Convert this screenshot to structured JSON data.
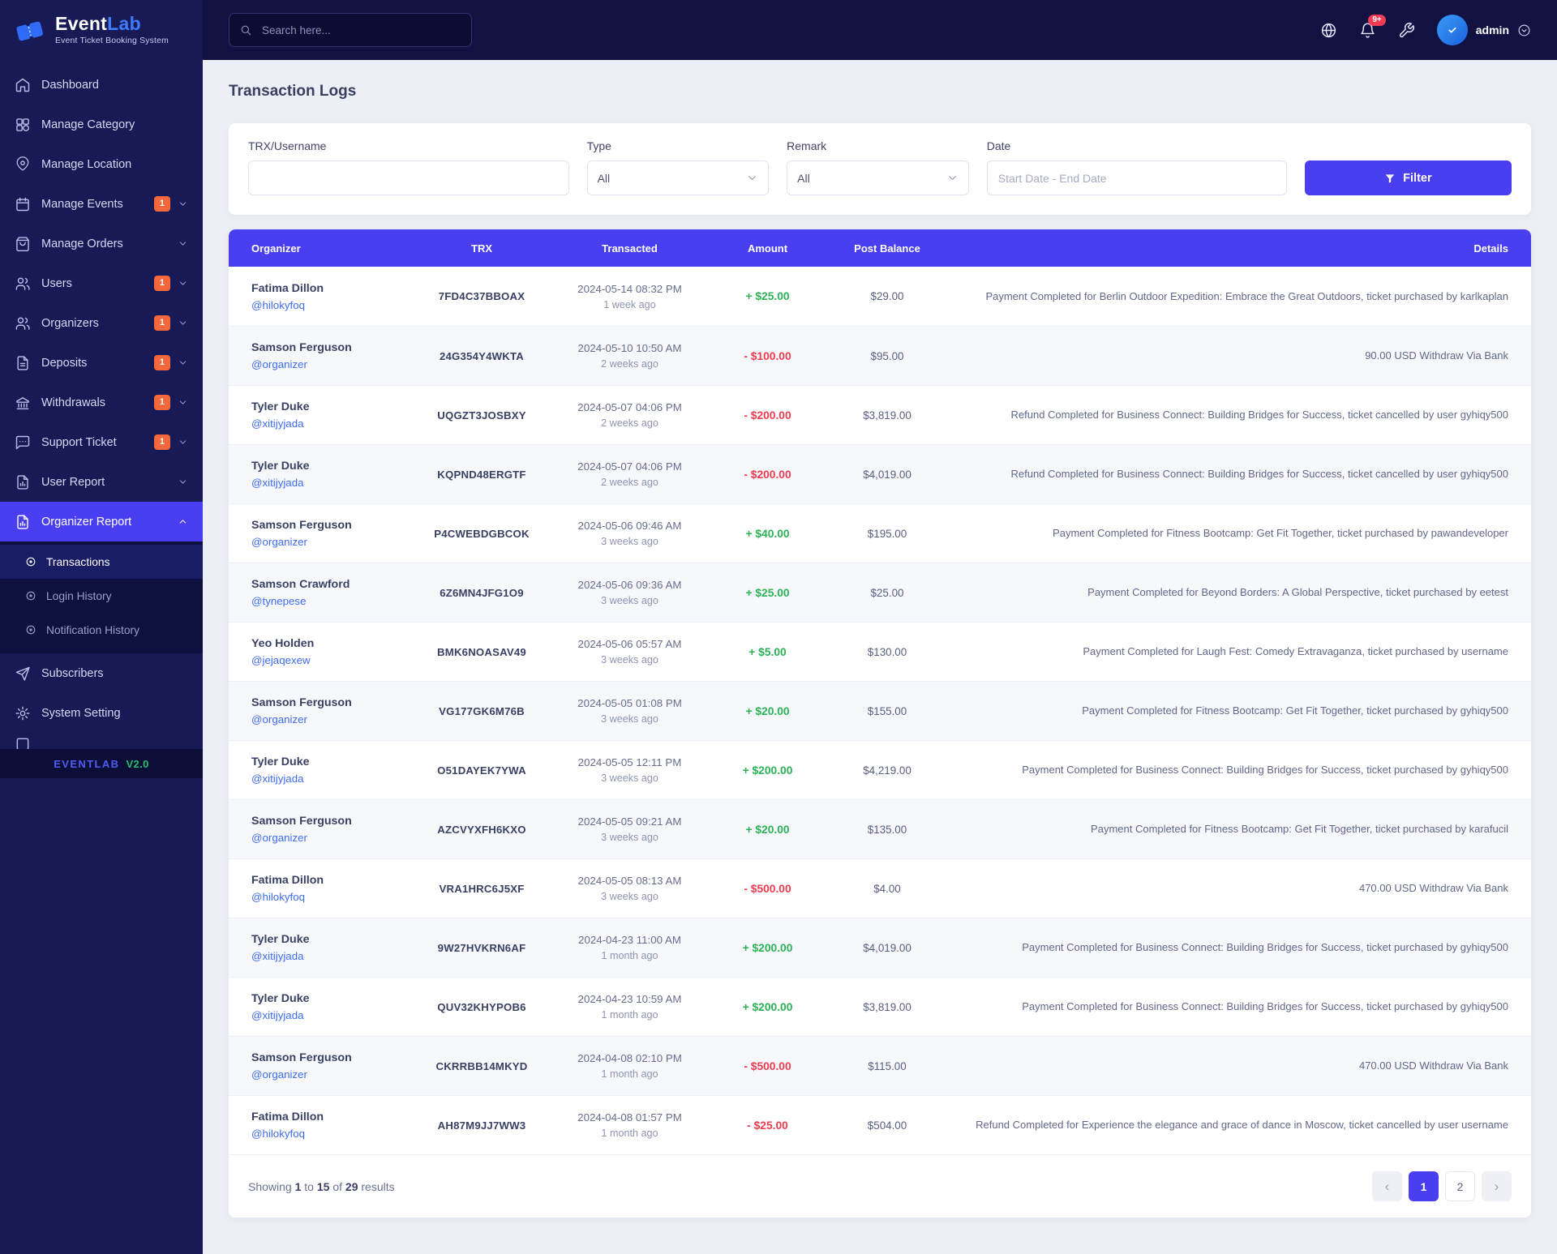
{
  "brand": {
    "name_part1": "Event",
    "name_part2": "Lab",
    "tagline": "Event Ticket Booking System",
    "footer_brand": "EVENTLAB",
    "footer_version": "V2.0"
  },
  "topbar": {
    "search_placeholder": "Search here...",
    "notification_badge": "9+",
    "username": "admin"
  },
  "sidebar": {
    "items": [
      {
        "label": "Dashboard",
        "icon": "home"
      },
      {
        "label": "Manage Category",
        "icon": "category"
      },
      {
        "label": "Manage Location",
        "icon": "location-pin"
      },
      {
        "label": "Manage Events",
        "icon": "calendar",
        "badge": "1",
        "chevron": "down"
      },
      {
        "label": "Manage Orders",
        "icon": "shopping-bag",
        "chevron": "down"
      },
      {
        "label": "Users",
        "icon": "users",
        "badge": "1",
        "chevron": "down"
      },
      {
        "label": "Organizers",
        "icon": "users",
        "badge": "1",
        "chevron": "down"
      },
      {
        "label": "Deposits",
        "icon": "file-document",
        "badge": "1",
        "chevron": "down"
      },
      {
        "label": "Withdrawals",
        "icon": "bank",
        "badge": "1",
        "chevron": "down"
      },
      {
        "label": "Support Ticket",
        "icon": "chat",
        "badge": "1",
        "chevron": "down"
      },
      {
        "label": "User Report",
        "icon": "report-file",
        "chevron": "down"
      },
      {
        "label": "Organizer Report",
        "icon": "report-file",
        "chevron": "up",
        "active": true,
        "children": [
          {
            "label": "Transactions",
            "active": true
          },
          {
            "label": "Login History"
          },
          {
            "label": "Notification History"
          }
        ]
      },
      {
        "label": "Subscribers",
        "icon": "send"
      },
      {
        "label": "System Setting",
        "icon": "gear"
      },
      {
        "label": "",
        "icon": "square",
        "clipped": true
      }
    ]
  },
  "page": {
    "title": "Transaction Logs"
  },
  "filter_bar": {
    "fields": {
      "trx_label": "TRX/Username",
      "type_label": "Type",
      "type_value": "All",
      "remark_label": "Remark",
      "remark_value": "All",
      "date_label": "Date",
      "date_placeholder": "Start Date - End Date"
    },
    "button_label": "Filter"
  },
  "table": {
    "headers": [
      "Organizer",
      "TRX",
      "Transacted",
      "Amount",
      "Post Balance",
      "Details"
    ],
    "rows": [
      {
        "name": "Fatima Dillon",
        "username": "@hilokyfoq",
        "trx": "7FD4C37BBOAX",
        "date": "2024-05-14 08:32 PM",
        "ago": "1 week ago",
        "amount": "+ $25.00",
        "type": "credit",
        "balance": "$29.00",
        "details": "Payment Completed for Berlin Outdoor Expedition: Embrace the Great Outdoors, ticket purchased by karlkaplan"
      },
      {
        "name": "Samson Ferguson",
        "username": "@organizer",
        "trx": "24G354Y4WKTA",
        "date": "2024-05-10 10:50 AM",
        "ago": "2 weeks ago",
        "amount": "- $100.00",
        "type": "debit",
        "balance": "$95.00",
        "details": "90.00 USD Withdraw Via Bank"
      },
      {
        "name": "Tyler Duke",
        "username": "@xitijyjada",
        "trx": "UQGZT3JOSBXY",
        "date": "2024-05-07 04:06 PM",
        "ago": "2 weeks ago",
        "amount": "- $200.00",
        "type": "debit",
        "balance": "$3,819.00",
        "details": "Refund Completed for Business Connect: Building Bridges for Success, ticket cancelled by user gyhiqy500"
      },
      {
        "name": "Tyler Duke",
        "username": "@xitijyjada",
        "trx": "KQPND48ERGTF",
        "date": "2024-05-07 04:06 PM",
        "ago": "2 weeks ago",
        "amount": "- $200.00",
        "type": "debit",
        "balance": "$4,019.00",
        "details": "Refund Completed for Business Connect: Building Bridges for Success, ticket cancelled by user gyhiqy500"
      },
      {
        "name": "Samson Ferguson",
        "username": "@organizer",
        "trx": "P4CWEBDGBCOK",
        "date": "2024-05-06 09:46 AM",
        "ago": "3 weeks ago",
        "amount": "+ $40.00",
        "type": "credit",
        "balance": "$195.00",
        "details": "Payment Completed for Fitness Bootcamp: Get Fit Together, ticket purchased by pawandeveloper"
      },
      {
        "name": "Samson Crawford",
        "username": "@tynepese",
        "trx": "6Z6MN4JFG1O9",
        "date": "2024-05-06 09:36 AM",
        "ago": "3 weeks ago",
        "amount": "+ $25.00",
        "type": "credit",
        "balance": "$25.00",
        "details": "Payment Completed for Beyond Borders: A Global Perspective, ticket purchased by eetest"
      },
      {
        "name": "Yeo Holden",
        "username": "@jejaqexew",
        "trx": "BMK6NOASAV49",
        "date": "2024-05-06 05:57 AM",
        "ago": "3 weeks ago",
        "amount": "+ $5.00",
        "type": "credit",
        "balance": "$130.00",
        "details": "Payment Completed for Laugh Fest: Comedy Extravaganza, ticket purchased by username"
      },
      {
        "name": "Samson Ferguson",
        "username": "@organizer",
        "trx": "VG177GK6M76B",
        "date": "2024-05-05 01:08 PM",
        "ago": "3 weeks ago",
        "amount": "+ $20.00",
        "type": "credit",
        "balance": "$155.00",
        "details": "Payment Completed for Fitness Bootcamp: Get Fit Together, ticket purchased by gyhiqy500"
      },
      {
        "name": "Tyler Duke",
        "username": "@xitijyjada",
        "trx": "O51DAYEK7YWA",
        "date": "2024-05-05 12:11 PM",
        "ago": "3 weeks ago",
        "amount": "+ $200.00",
        "type": "credit",
        "balance": "$4,219.00",
        "details": "Payment Completed for Business Connect: Building Bridges for Success, ticket purchased by gyhiqy500"
      },
      {
        "name": "Samson Ferguson",
        "username": "@organizer",
        "trx": "AZCVYXFH6KXO",
        "date": "2024-05-05 09:21 AM",
        "ago": "3 weeks ago",
        "amount": "+ $20.00",
        "type": "credit",
        "balance": "$135.00",
        "details": "Payment Completed for Fitness Bootcamp: Get Fit Together, ticket purchased by karafucil"
      },
      {
        "name": "Fatima Dillon",
        "username": "@hilokyfoq",
        "trx": "VRA1HRC6J5XF",
        "date": "2024-05-05 08:13 AM",
        "ago": "3 weeks ago",
        "amount": "- $500.00",
        "type": "debit",
        "balance": "$4.00",
        "details": "470.00 USD Withdraw Via Bank"
      },
      {
        "name": "Tyler Duke",
        "username": "@xitijyjada",
        "trx": "9W27HVKRN6AF",
        "date": "2024-04-23 11:00 AM",
        "ago": "1 month ago",
        "amount": "+ $200.00",
        "type": "credit",
        "balance": "$4,019.00",
        "details": "Payment Completed for Business Connect: Building Bridges for Success, ticket purchased by gyhiqy500"
      },
      {
        "name": "Tyler Duke",
        "username": "@xitijyjada",
        "trx": "QUV32KHYPOB6",
        "date": "2024-04-23 10:59 AM",
        "ago": "1 month ago",
        "amount": "+ $200.00",
        "type": "credit",
        "balance": "$3,819.00",
        "details": "Payment Completed for Business Connect: Building Bridges for Success, ticket purchased by gyhiqy500"
      },
      {
        "name": "Samson Ferguson",
        "username": "@organizer",
        "trx": "CKRRBB14MKYD",
        "date": "2024-04-08 02:10 PM",
        "ago": "1 month ago",
        "amount": "- $500.00",
        "type": "debit",
        "balance": "$115.00",
        "details": "470.00 USD Withdraw Via Bank"
      },
      {
        "name": "Fatima Dillon",
        "username": "@hilokyfoq",
        "trx": "AH87M9JJ7WW3",
        "date": "2024-04-08 01:57 PM",
        "ago": "1 month ago",
        "amount": "- $25.00",
        "type": "debit",
        "balance": "$504.00",
        "details": "Refund Completed for Experience the elegance and grace of dance in Moscow, ticket cancelled by user username"
      }
    ]
  },
  "pagination": {
    "summary": {
      "prefix": "Showing",
      "from": "1",
      "to_word": "to",
      "to": "15",
      "of_word": "of",
      "total": "29",
      "suffix": "results"
    },
    "prev": "‹",
    "next": "›",
    "pages": [
      "1",
      "2"
    ],
    "active_page": "1"
  },
  "colors": {
    "accent": "#4a3ff0",
    "pos": "#2bb256",
    "neg": "#ee3b4e",
    "link": "#3d6bf4",
    "badge": "#f2683c"
  }
}
